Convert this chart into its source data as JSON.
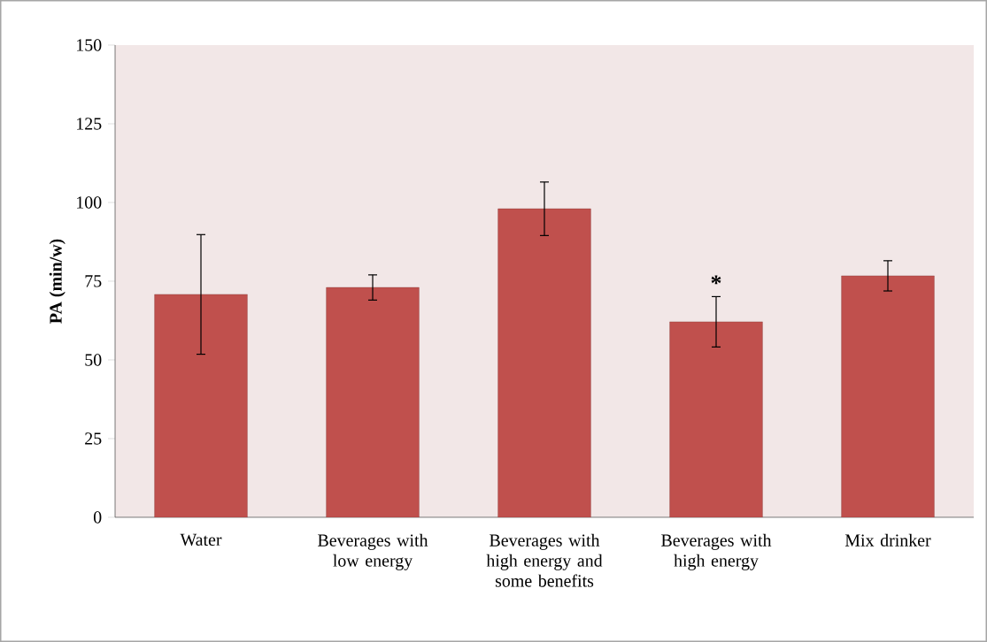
{
  "chart_data": {
    "type": "bar",
    "ylabel": "PA (min/w)",
    "categories": [
      "Water",
      "Beverages with low energy",
      "Beverages with high energy and some benefits",
      "Beverages with high energy",
      "Mix drinker"
    ],
    "values": [
      70.8,
      73.0,
      98.0,
      62.1,
      76.7
    ],
    "errors": [
      19,
      4,
      8.5,
      8,
      4.8
    ],
    "color": "#c0504d",
    "ylim": [
      0,
      150
    ],
    "yticks": [
      0,
      25,
      50,
      75,
      100,
      125,
      150
    ],
    "annotations": [
      {
        "text": "*",
        "x": "Beverages with high energy",
        "y": 70.1
      }
    ]
  }
}
